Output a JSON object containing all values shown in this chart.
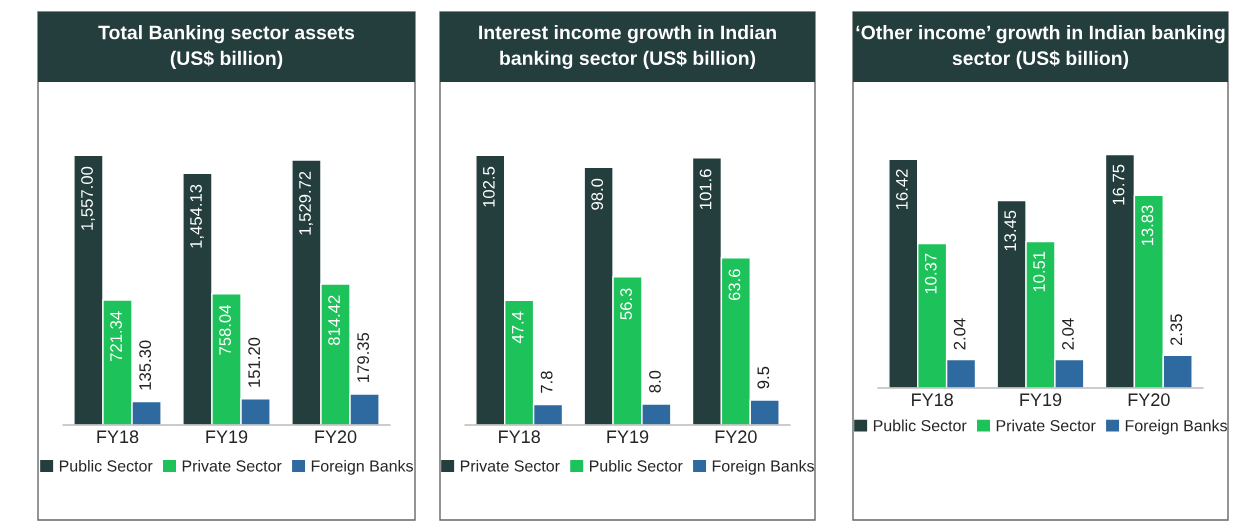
{
  "chart_data": [
    {
      "type": "bar",
      "title": "Total Banking sector assets\n(US$ billion)",
      "categories": [
        "FY18",
        "FY19",
        "FY20"
      ],
      "legend": "bottom",
      "series": [
        {
          "name": "Public Sector",
          "color": "#243d3d",
          "values": [
            1557.0,
            1454.13,
            1529.72
          ],
          "value_labels": [
            "1,557.00",
            "1,454.13",
            "1,529.72"
          ]
        },
        {
          "name": "Private Sector",
          "color": "#1ec25a",
          "values": [
            721.34,
            758.04,
            814.42
          ],
          "value_labels": [
            "721.34",
            "758.04",
            "814.42"
          ]
        },
        {
          "name": "Foreign Banks",
          "color": "#2e6aa0",
          "values": [
            135.3,
            151.2,
            179.35
          ],
          "value_labels": [
            "135.30",
            "151.20",
            "179.35"
          ]
        }
      ]
    },
    {
      "type": "bar",
      "title": "Interest income growth in Indian\nbanking sector (US$ billion)",
      "categories": [
        "FY18",
        "FY19",
        "FY20"
      ],
      "legend": "bottom",
      "series": [
        {
          "name": "Private Sector",
          "color": "#243d3d",
          "values": [
            102.5,
            98.0,
            101.6
          ],
          "value_labels": [
            "102.5",
            "98.0",
            "101.6"
          ]
        },
        {
          "name": "Public Sector",
          "color": "#1ec25a",
          "values": [
            47.4,
            56.3,
            63.6
          ],
          "value_labels": [
            "47.4",
            "56.3",
            "63.6"
          ]
        },
        {
          "name": "Foreign Banks",
          "color": "#2e6aa0",
          "values": [
            7.8,
            8.0,
            9.5
          ],
          "value_labels": [
            "7.8",
            "8.0",
            "9.5"
          ]
        }
      ]
    },
    {
      "type": "bar",
      "title": "‘Other income’ growth in Indian banking\nsector (US$ billion)",
      "categories": [
        "FY18",
        "FY19",
        "FY20"
      ],
      "legend": "bottom",
      "series": [
        {
          "name": "Public Sector",
          "color": "#243d3d",
          "values": [
            16.42,
            13.45,
            16.75
          ],
          "value_labels": [
            "16.42",
            "13.45",
            "16.75"
          ]
        },
        {
          "name": "Private Sector",
          "color": "#1ec25a",
          "values": [
            10.37,
            10.51,
            13.83
          ],
          "value_labels": [
            "10.37",
            "10.51",
            "13.83"
          ]
        },
        {
          "name": "Foreign Banks",
          "color": "#2e6aa0",
          "values": [
            2.04,
            2.04,
            2.35
          ],
          "value_labels": [
            "2.04",
            "2.04",
            "2.35"
          ]
        }
      ]
    }
  ]
}
